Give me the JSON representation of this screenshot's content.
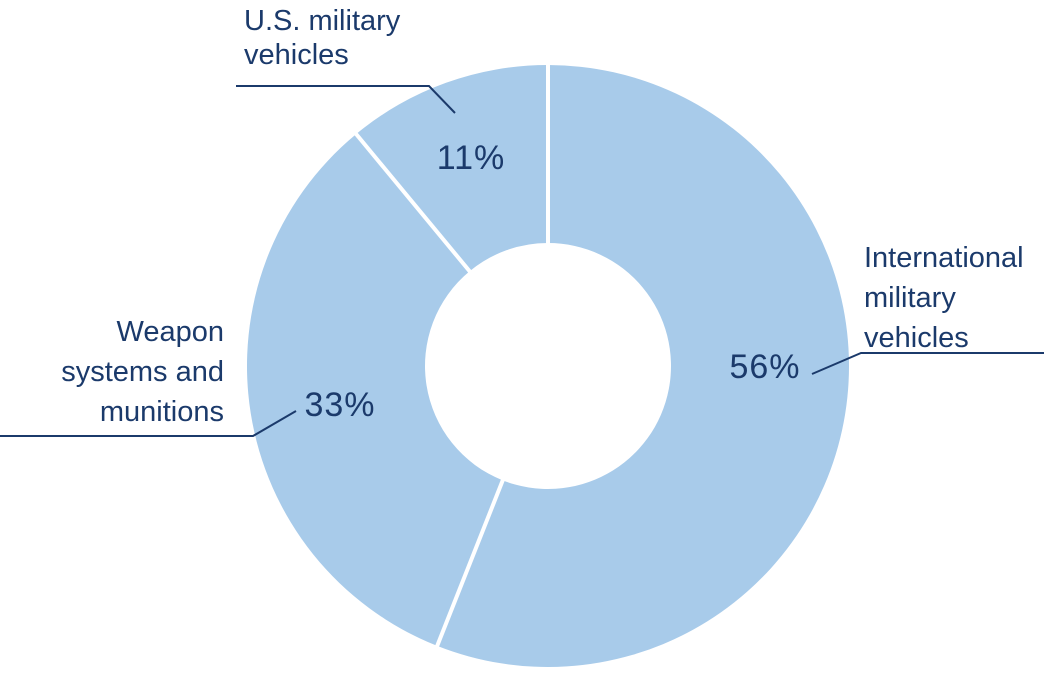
{
  "chart_data": {
    "type": "pie",
    "subtype": "donut",
    "title": "",
    "legend_position": "none",
    "direction": "clockwise",
    "start_angle_deg": 0,
    "slices": [
      {
        "name": "International military vehicles",
        "value": 56,
        "display_value": "56%",
        "label_display": "International\nmilitary\nvehicles"
      },
      {
        "name": "Weapon systems and munitions",
        "value": 33,
        "display_value": "33%",
        "label_display": "Weapon\nsystems and\nmunitions"
      },
      {
        "name": "U.S. military vehicles",
        "value": 11,
        "display_value": "11%",
        "label_display": "U.S. military\nvehicles"
      }
    ],
    "colors": {
      "slice_fill": "#A8CBEA",
      "divider": "#FFFFFF",
      "text": "#1B3A6B",
      "leader_line": "#1B3A6B"
    },
    "background": "#FFFFFF"
  }
}
